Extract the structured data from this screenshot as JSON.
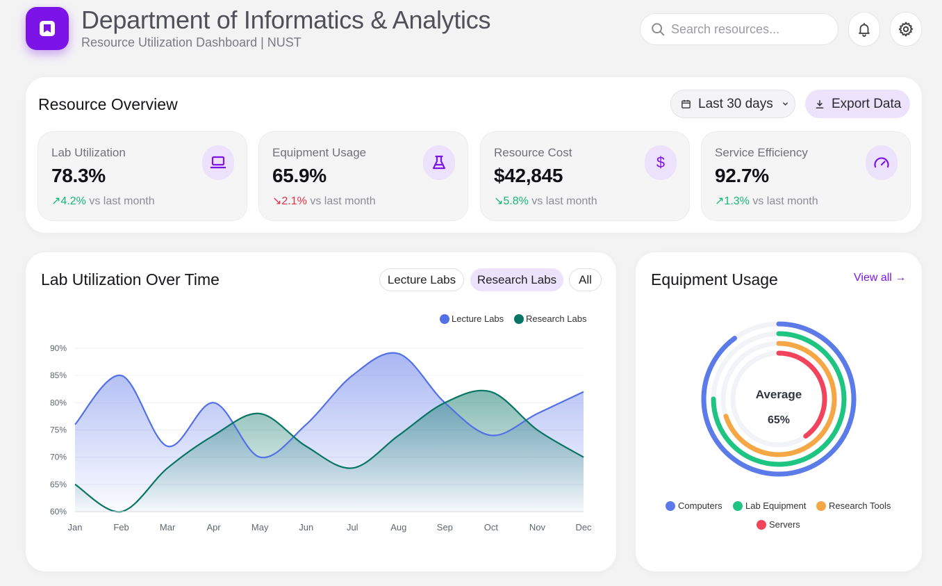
{
  "header": {
    "title": "Department of Informatics & Analytics",
    "subtitle": "Resource Utilization Dashboard | NUST",
    "search_placeholder": "Search resources..."
  },
  "overview": {
    "title": "Resource Overview",
    "date_range": "Last 30 days",
    "export_label": "Export Data",
    "stats": [
      {
        "label": "Lab Utilization",
        "value": "78.3%",
        "change": "4.2%",
        "direction": "up",
        "suffix": "vs last month",
        "icon": "laptop-icon"
      },
      {
        "label": "Equipment Usage",
        "value": "65.9%",
        "change": "2.1%",
        "direction": "down",
        "suffix": "vs last month",
        "icon": "flask-icon"
      },
      {
        "label": "Resource Cost",
        "value": "$42,845",
        "change": "5.8%",
        "direction": "down",
        "suffix": "vs last month",
        "icon": "dollar-icon"
      },
      {
        "label": "Service Efficiency",
        "value": "92.7%",
        "change": "1.3%",
        "direction": "up",
        "suffix": "vs last month",
        "icon": "gauge-icon"
      }
    ]
  },
  "line_panel": {
    "title": "Lab Utilization Over Time",
    "toggles": [
      "Lecture Labs",
      "Research Labs",
      "All"
    ],
    "active_toggle": "Research Labs"
  },
  "donut_panel": {
    "title": "Equipment Usage",
    "view_all": "View all →",
    "center_label": "Average",
    "center_value": "65%"
  },
  "colors": {
    "accent": "#7c14e8",
    "lecture": "#5470e6",
    "research": "#087564",
    "computers": "#5b7be8",
    "lab_equipment": "#1ec482",
    "research_tools": "#f6a745",
    "servers": "#f2435c"
  },
  "chart_data": [
    {
      "type": "area",
      "x": [
        "Jan",
        "Feb",
        "Mar",
        "Apr",
        "May",
        "Jun",
        "Jul",
        "Aug",
        "Sep",
        "Oct",
        "Nov",
        "Dec"
      ],
      "series": [
        {
          "name": "Lecture Labs",
          "values": [
            76,
            85,
            72,
            80,
            70,
            76,
            85,
            89,
            80,
            74,
            78,
            82
          ]
        },
        {
          "name": "Research Labs",
          "values": [
            65,
            60,
            68,
            74,
            78,
            72,
            68,
            74,
            80,
            82,
            75,
            70
          ]
        }
      ],
      "yticks": [
        "60%",
        "65%",
        "70%",
        "75%",
        "80%",
        "85%",
        "90%"
      ],
      "ylim": [
        60,
        90
      ],
      "legend": "top-right",
      "grid": true
    },
    {
      "type": "radial-bar",
      "categories": [
        "Computers",
        "Lab Equipment",
        "Research Tools",
        "Servers"
      ],
      "values": [
        90,
        75,
        70,
        40
      ],
      "max": 100,
      "center_label": "Average",
      "center_value": "65%",
      "legend": "bottom"
    }
  ]
}
